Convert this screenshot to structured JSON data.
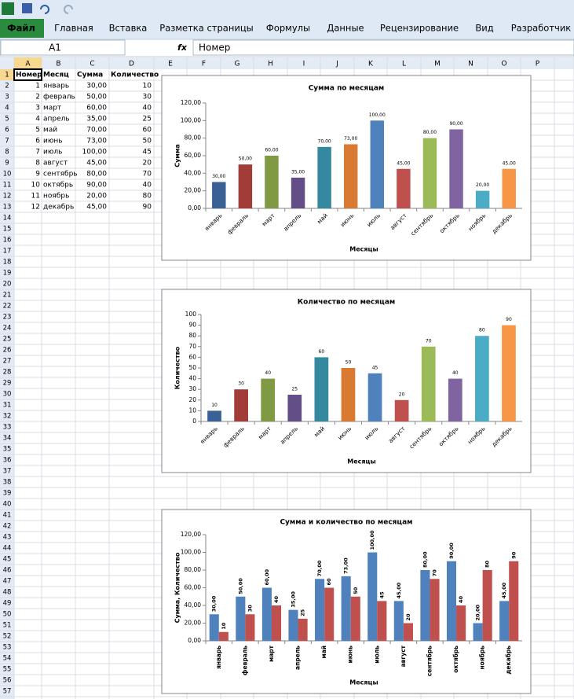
{
  "ribbon": {
    "tabs": [
      "Файл",
      "Главная",
      "Вставка",
      "Разметка страницы",
      "Формулы",
      "Данные",
      "Рецензирование",
      "Вид",
      "Разработчик"
    ]
  },
  "formula_bar": {
    "name_box": "A1",
    "fx": "fx",
    "formula": "Номер"
  },
  "sheet": {
    "columns": [
      "A",
      "B",
      "C",
      "D",
      "E",
      "F",
      "G",
      "H",
      "I",
      "J",
      "K",
      "L",
      "M",
      "N",
      "O",
      "P"
    ],
    "row_numbers": [
      1,
      2,
      3,
      4,
      5,
      6,
      7,
      8,
      9,
      10,
      11,
      12,
      13,
      14,
      15,
      16,
      17,
      18,
      19,
      20,
      21,
      22,
      23,
      24,
      25,
      26,
      27,
      28,
      29,
      30,
      31,
      32,
      33,
      34,
      35,
      36,
      37,
      38,
      39,
      40,
      41,
      42,
      43,
      44,
      45,
      46,
      47,
      48,
      49,
      50,
      51,
      52,
      53,
      54,
      55,
      56,
      57
    ],
    "header": [
      "Номер",
      "Месяц",
      "Сумма",
      "Количество"
    ],
    "rows": [
      [
        1,
        "январь",
        "30,00",
        10
      ],
      [
        2,
        "февраль",
        "50,00",
        30
      ],
      [
        3,
        "март",
        "60,00",
        40
      ],
      [
        4,
        "апрель",
        "35,00",
        25
      ],
      [
        5,
        "май",
        "70,00",
        60
      ],
      [
        6,
        "июнь",
        "73,00",
        50
      ],
      [
        7,
        "июль",
        "100,00",
        45
      ],
      [
        8,
        "август",
        "45,00",
        20
      ],
      [
        9,
        "сентябрь",
        "80,00",
        70
      ],
      [
        10,
        "октябрь",
        "90,00",
        40
      ],
      [
        11,
        "ноябрь",
        "20,00",
        80
      ],
      [
        12,
        "декабрь",
        "45,00",
        90
      ]
    ]
  },
  "chart_data": [
    {
      "type": "bar",
      "title": "Сумма по месяцам",
      "x_label": "Месяцы",
      "y_label": "Сумма",
      "categories": [
        "январь",
        "февраль",
        "март",
        "апрель",
        "май",
        "июнь",
        "июль",
        "август",
        "сентябрь",
        "октябрь",
        "ноябрь",
        "декабрь"
      ],
      "values": [
        30,
        50,
        60,
        35,
        70,
        73,
        100,
        45,
        80,
        90,
        20,
        45
      ],
      "value_labels": [
        "30,00",
        "50,00",
        "60,00",
        "35,00",
        "70,00",
        "73,00",
        "100,00",
        "45,00",
        "80,00",
        "90,00",
        "20,00",
        "45,00"
      ],
      "colors": [
        "#3a6195",
        "#a23c39",
        "#7f9a43",
        "#644e87",
        "#34889f",
        "#d87a32",
        "#4f81bd",
        "#c0504d",
        "#9bbb59",
        "#8064a2",
        "#4bacc6",
        "#f79646"
      ],
      "ylim": [
        0,
        120
      ],
      "yticks": [
        {
          "value": 0,
          "label": "0,00"
        },
        {
          "value": 20,
          "label": "20,00"
        },
        {
          "value": 40,
          "label": "40,00"
        },
        {
          "value": 60,
          "label": "60,00"
        },
        {
          "value": 80,
          "label": "80,00"
        },
        {
          "value": 100,
          "label": "100,00"
        },
        {
          "value": 120,
          "label": "120,00"
        }
      ],
      "grid": false
    },
    {
      "type": "bar",
      "title": "Количество по месяцам",
      "x_label": "Месяцы",
      "y_label": "Количество",
      "categories": [
        "январь",
        "февраль",
        "март",
        "апрель",
        "май",
        "июнь",
        "июль",
        "август",
        "сентябрь",
        "октябрь",
        "ноябрь",
        "декабрь"
      ],
      "values": [
        10,
        30,
        40,
        25,
        60,
        50,
        45,
        20,
        70,
        40,
        80,
        90
      ],
      "colors": [
        "#3a6195",
        "#a23c39",
        "#7f9a43",
        "#644e87",
        "#34889f",
        "#d87a32",
        "#4f81bd",
        "#c0504d",
        "#9bbb59",
        "#8064a2",
        "#4bacc6",
        "#f79646"
      ],
      "ylim": [
        0,
        100
      ],
      "yticks": [
        0,
        10,
        20,
        30,
        40,
        50,
        60,
        70,
        80,
        90,
        100
      ],
      "grid": false
    },
    {
      "type": "grouped_bar",
      "title": "Сумма и количество по месяцам",
      "x_label": "Месяцы",
      "y_label": "Сумма, Количество",
      "categories": [
        "январь",
        "февраль",
        "март",
        "апрель",
        "май",
        "июнь",
        "июль",
        "август",
        "сентябрь",
        "октябрь",
        "ноябрь",
        "декабрь"
      ],
      "series": [
        {
          "color": "#4f81bd",
          "values": [
            30,
            50,
            60,
            35,
            70,
            73,
            100,
            45,
            80,
            90,
            20,
            45
          ],
          "value_labels": [
            "30,00",
            "50,00",
            "60,00",
            "35,00",
            "70,00",
            "73,00",
            "100,00",
            "45,00",
            "80,00",
            "90,00",
            "20,00",
            "45,00"
          ]
        },
        {
          "color": "#c0504d",
          "values": [
            10,
            30,
            40,
            25,
            60,
            50,
            45,
            20,
            70,
            40,
            80,
            90
          ]
        }
      ],
      "ylim": [
        0,
        120
      ],
      "yticks": [
        {
          "value": 0,
          "label": "0,00"
        },
        {
          "value": 20,
          "label": "20,00"
        },
        {
          "value": 40,
          "label": "40,00"
        },
        {
          "value": 60,
          "label": "60,00"
        },
        {
          "value": 80,
          "label": "80,00"
        },
        {
          "value": 100,
          "label": "100,00"
        },
        {
          "value": 120,
          "label": "120,00"
        }
      ],
      "grid": false
    }
  ]
}
